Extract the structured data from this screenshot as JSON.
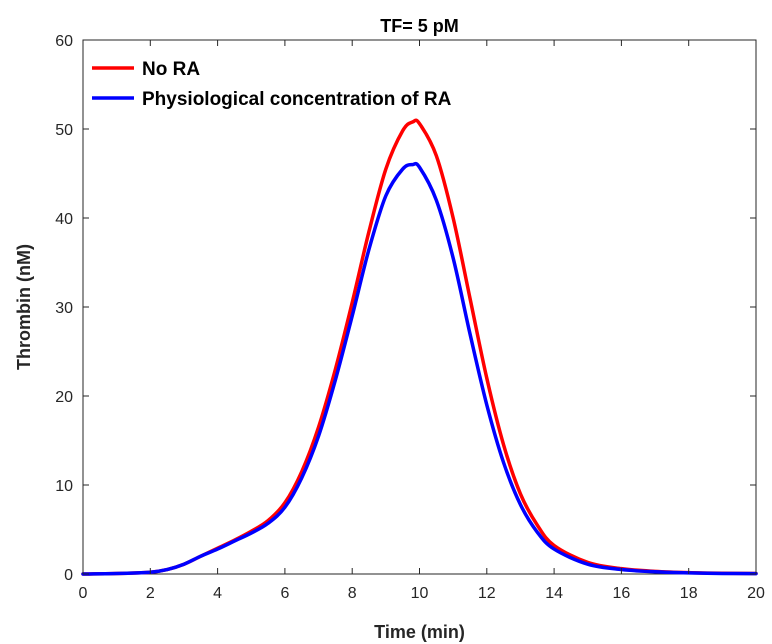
{
  "chart_data": {
    "type": "line",
    "title": "TF= 5 pM",
    "xlabel": "Time (min)",
    "ylabel": "Thrombin (nM)",
    "xlim": [
      0,
      20
    ],
    "ylim": [
      0,
      60
    ],
    "xticks": [
      0,
      2,
      4,
      6,
      8,
      10,
      12,
      14,
      16,
      18,
      20
    ],
    "yticks": [
      0,
      10,
      20,
      30,
      40,
      50,
      60
    ],
    "grid": false,
    "legend_position": "top-left",
    "series": [
      {
        "name": "No RA",
        "color": "#ff0000",
        "x": [
          0,
          1,
          2,
          2.5,
          3,
          3.5,
          4,
          4.5,
          5,
          5.5,
          6,
          6.5,
          7,
          7.5,
          8,
          8.5,
          9,
          9.5,
          9.8,
          10,
          10.5,
          11,
          11.5,
          12,
          12.5,
          13,
          13.5,
          14,
          15,
          16,
          17,
          18,
          19,
          20
        ],
        "y": [
          0,
          0.05,
          0.2,
          0.5,
          1.1,
          2.0,
          2.9,
          3.8,
          4.8,
          6.0,
          8.0,
          11.5,
          16.5,
          23.0,
          30.5,
          38.5,
          45.5,
          49.8,
          50.8,
          50.6,
          47.0,
          40.0,
          31.0,
          22.0,
          14.5,
          9.0,
          5.5,
          3.2,
          1.3,
          0.6,
          0.3,
          0.15,
          0.08,
          0.05
        ]
      },
      {
        "name": "Physiological concentration of RA",
        "color": "#0000ff",
        "x": [
          0,
          1,
          2,
          2.5,
          3,
          3.5,
          4,
          4.5,
          5,
          5.5,
          6,
          6.5,
          7,
          7.5,
          8,
          8.5,
          9,
          9.5,
          9.8,
          10,
          10.5,
          11,
          11.5,
          12,
          12.5,
          13,
          13.5,
          14,
          15,
          16,
          17,
          18,
          19,
          20
        ],
        "y": [
          0,
          0.05,
          0.2,
          0.5,
          1.1,
          2.0,
          2.8,
          3.7,
          4.6,
          5.7,
          7.5,
          10.8,
          15.5,
          21.8,
          29.0,
          36.5,
          42.5,
          45.5,
          46.0,
          45.7,
          42.0,
          35.5,
          27.0,
          19.0,
          12.5,
          7.8,
          4.7,
          2.8,
          1.1,
          0.5,
          0.25,
          0.12,
          0.06,
          0.04
        ]
      }
    ]
  }
}
